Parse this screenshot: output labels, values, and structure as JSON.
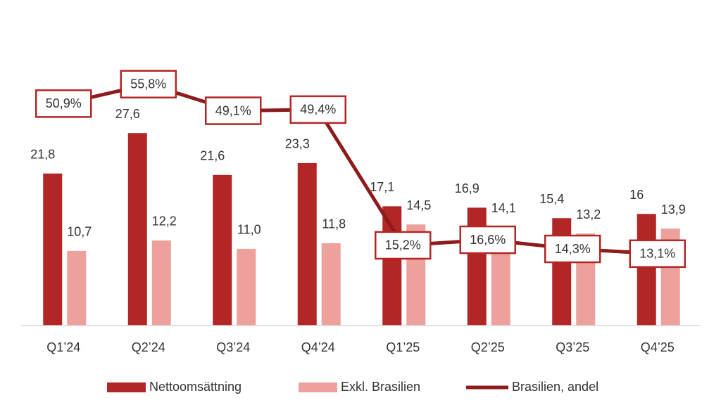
{
  "chart_data": {
    "type": "bar_line",
    "categories": [
      "Q1’24",
      "Q2’24",
      "Q3’24",
      "Q4’24",
      "Q1’25",
      "Q2’25",
      "Q3’25",
      "Q4’25"
    ],
    "series": [
      {
        "name": "Nettoomsättning",
        "type": "bar",
        "color": "#b22625",
        "values": [
          21.8,
          27.6,
          21.6,
          23.3,
          17.1,
          16.9,
          15.4,
          16
        ],
        "value_labels": [
          "21,8",
          "27,6",
          "21,6",
          "23,3",
          "17,1",
          "16,9",
          "15,4",
          "16"
        ]
      },
      {
        "name": "Exkl. Brasilien",
        "type": "bar",
        "color": "#eda19d",
        "values": [
          10.7,
          12.2,
          11.0,
          11.8,
          14.5,
          14.1,
          13.2,
          13.9
        ],
        "value_labels": [
          "10,7",
          "12,2",
          "11,0",
          "11,8",
          "14,5",
          "14,1",
          "13,2",
          "13,9"
        ]
      },
      {
        "name": "Brasilien, andel",
        "type": "line",
        "axis": "y2",
        "color": "#8e1b1b",
        "values": [
          50.9,
          55.8,
          49.1,
          49.4,
          15.2,
          16.6,
          14.3,
          13.1
        ],
        "value_labels": [
          "50,9%",
          "55,8%",
          "49,1%",
          "49,4%",
          "15,2%",
          "16,6%",
          "14,3%",
          "13,1%"
        ]
      }
    ],
    "ylim": [
      0,
      37
    ],
    "y2lim": [
      -5,
      60
    ],
    "legend": "bottom"
  }
}
